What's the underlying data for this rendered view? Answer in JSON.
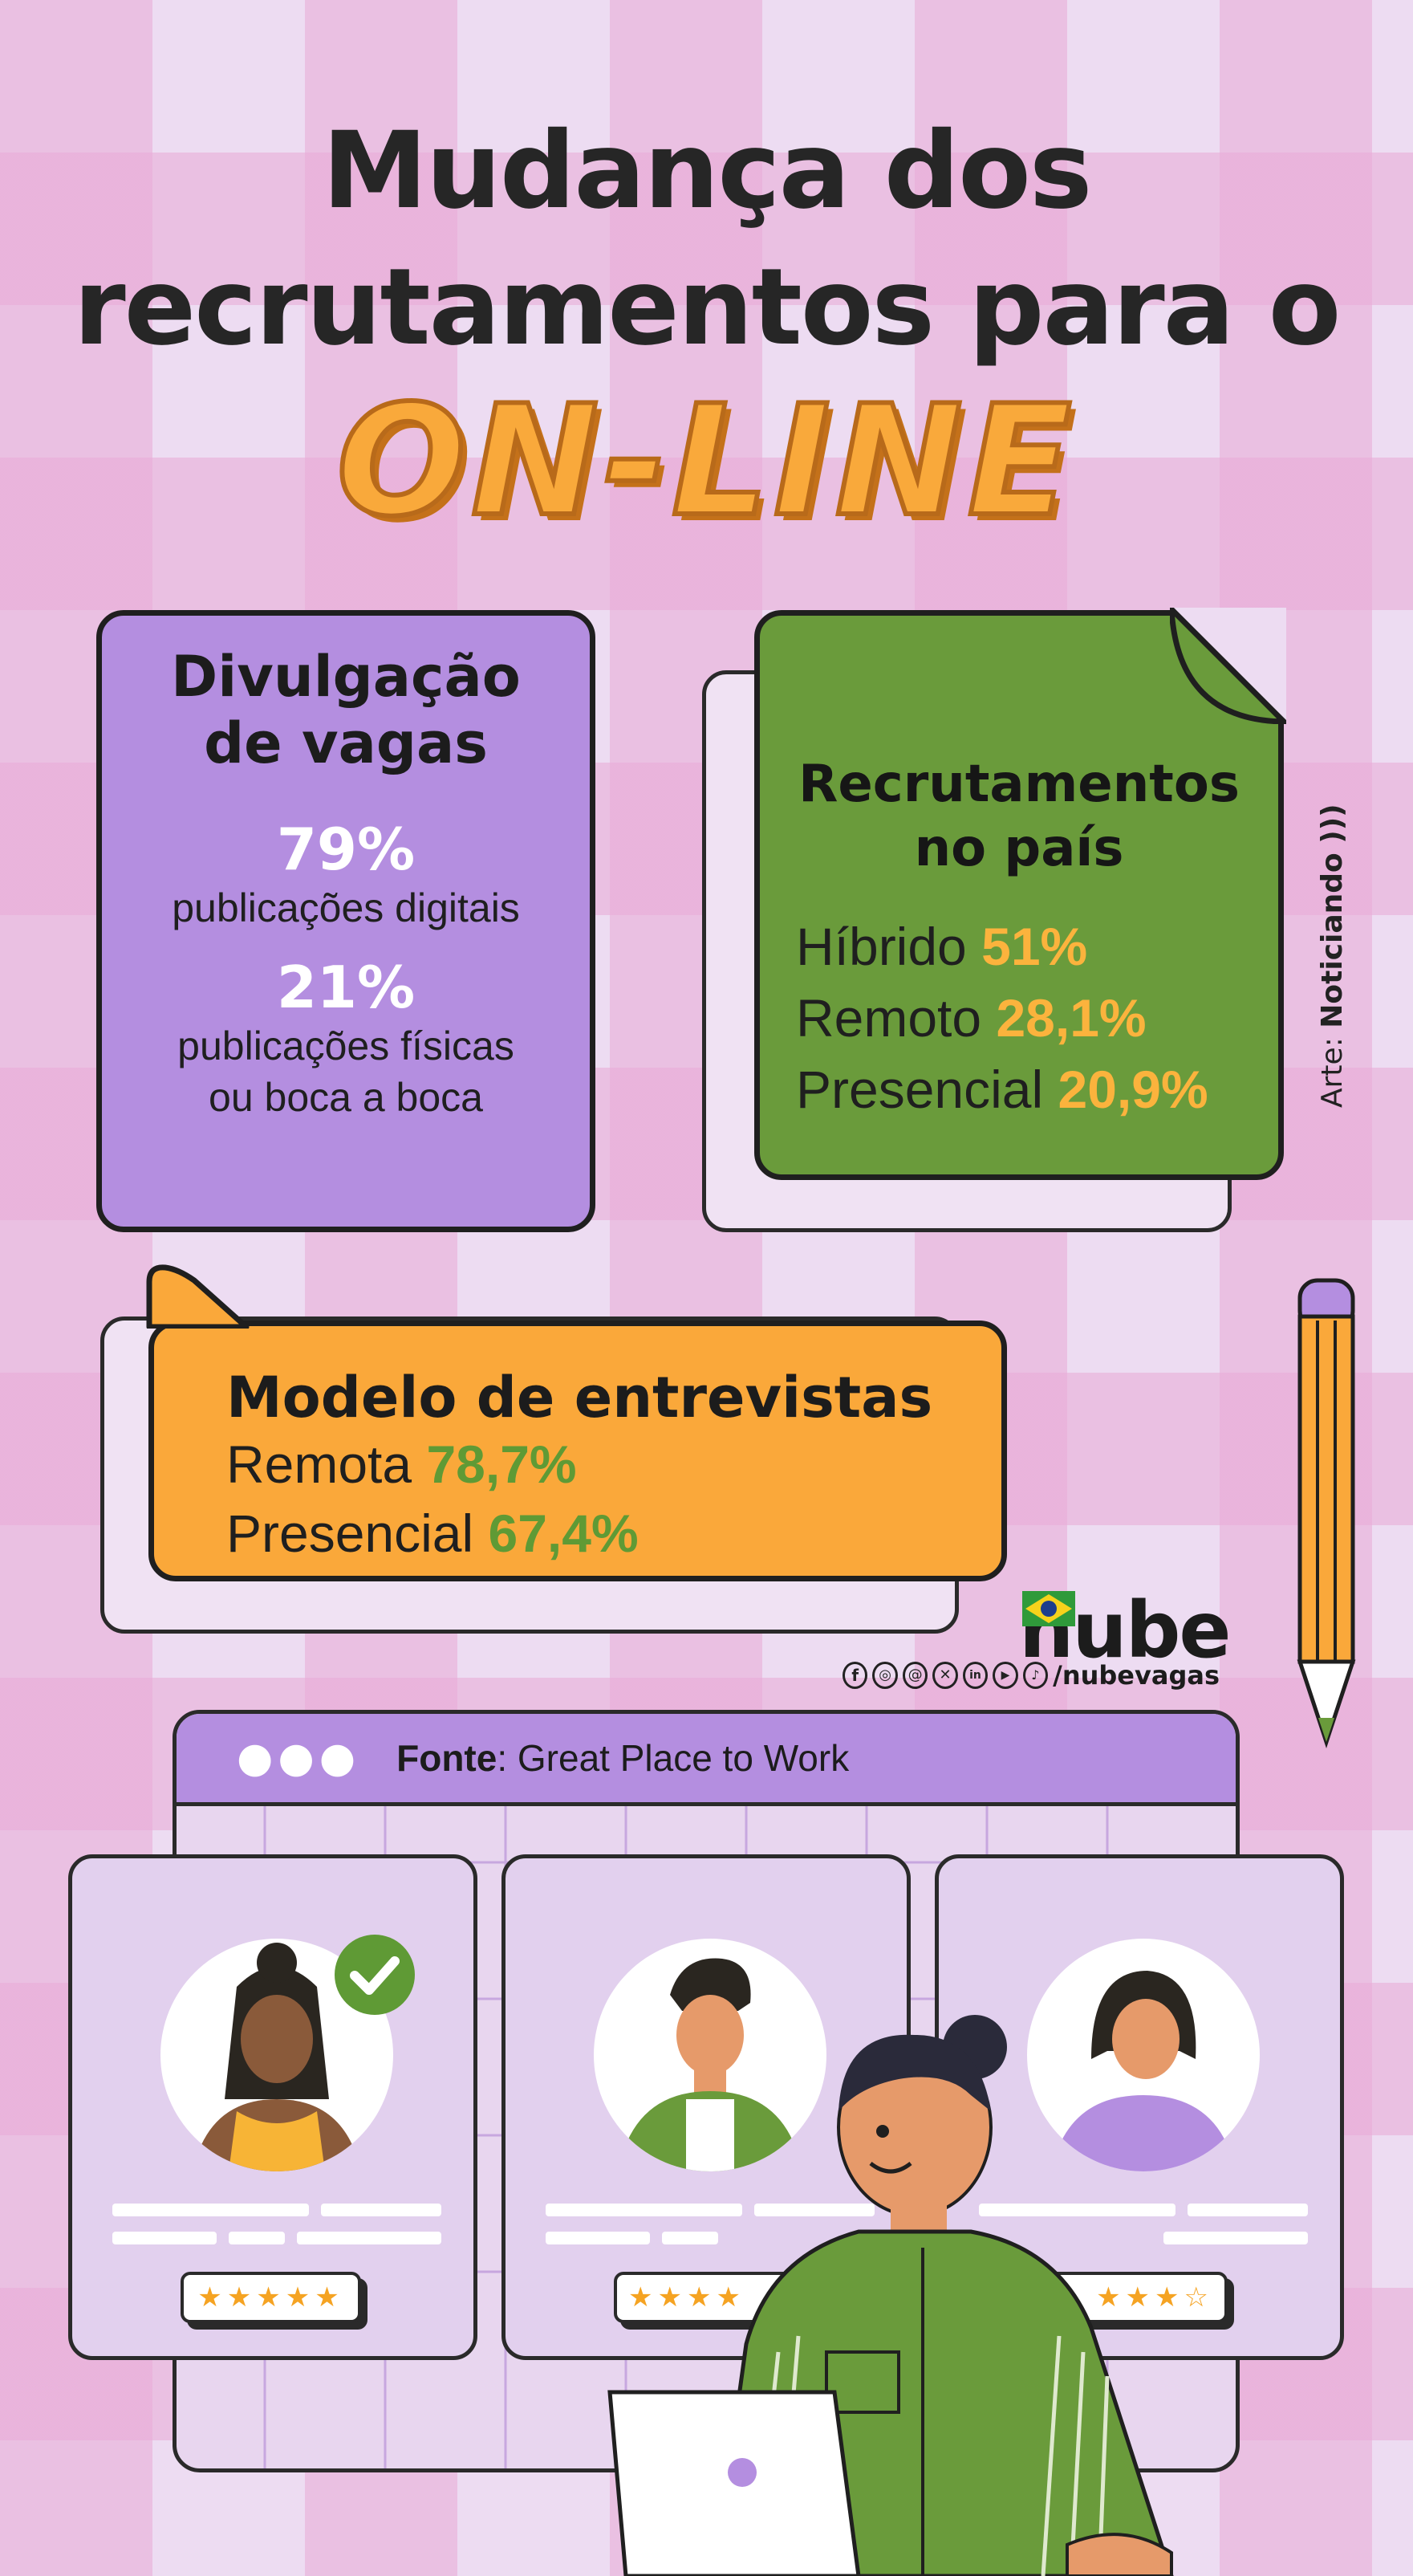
{
  "header": {
    "title_line1": "Mudança dos",
    "title_line2": "recrutamentos para o",
    "title_highlight": "ON-LINE"
  },
  "divulgacao": {
    "title_line1": "Divulgação",
    "title_line2": "de vagas",
    "stat1_value": "79%",
    "stat1_label": "publicações digitais",
    "stat2_value": "21%",
    "stat2_label_line1": "publicações físicas",
    "stat2_label_line2": "ou boca a boca"
  },
  "recrutamentos": {
    "title_line1": "Recrutamentos",
    "title_line2": "no país",
    "items": [
      {
        "label": "Híbrido",
        "value": "51%"
      },
      {
        "label": "Remoto",
        "value": "28,1%"
      },
      {
        "label": "Presencial",
        "value": "20,9%"
      }
    ]
  },
  "entrevistas": {
    "title": "Modelo de entrevistas",
    "items": [
      {
        "label": "Remota",
        "value": "78,7%"
      },
      {
        "label": "Presencial",
        "value": "67,4%"
      }
    ]
  },
  "credit": {
    "prefix": "Arte:",
    "brand": "Noticiando"
  },
  "brand": {
    "name": "nube",
    "social_handle": "/nubevagas"
  },
  "source": {
    "label": "Fonte",
    "text": ": Great Place to Work"
  },
  "ratings": {
    "card1": "★★★★★",
    "card2": "★★★★",
    "card3": "★★★☆"
  },
  "colors": {
    "accent_orange": "#faa83a",
    "accent_purple": "#b48ee0",
    "accent_green": "#6a9b3b"
  }
}
